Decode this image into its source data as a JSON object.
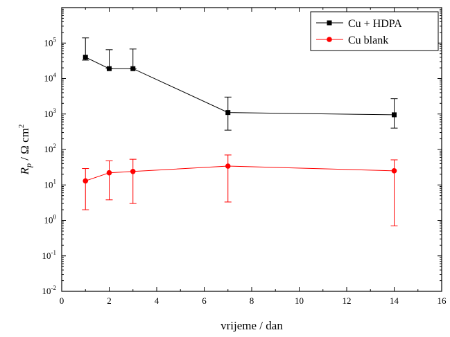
{
  "chart_data": {
    "type": "line",
    "xlabel": "vrijeme / dan",
    "ylabel": {
      "symbol": "R",
      "subscript": "p",
      "unit": " / Ω cm",
      "unit_exp": "2"
    },
    "xlim": [
      0,
      16
    ],
    "ylim": [
      0.01,
      1000000
    ],
    "yscale": "log",
    "xticks": [
      0,
      2,
      4,
      6,
      8,
      10,
      12,
      14,
      16
    ],
    "yticks": [
      {
        "value": 0.01,
        "base": "10",
        "exp": "-2"
      },
      {
        "value": 0.1,
        "base": "10",
        "exp": "-1"
      },
      {
        "value": 1,
        "base": "10",
        "exp": "0"
      },
      {
        "value": 10,
        "base": "10",
        "exp": "1"
      },
      {
        "value": 100,
        "base": "10",
        "exp": "2"
      },
      {
        "value": 1000,
        "base": "10",
        "exp": "3"
      },
      {
        "value": 10000,
        "base": "10",
        "exp": "4"
      },
      {
        "value": 100000,
        "base": "10",
        "exp": "5"
      }
    ],
    "grid": false,
    "legend_position": "top-right",
    "series": [
      {
        "name": "Cu + HDPA",
        "color": "#000000",
        "marker": "square",
        "points": [
          {
            "x": 1,
            "y": 40000,
            "err_low": 33000,
            "err_high": 140000
          },
          {
            "x": 2,
            "y": 19000,
            "err_low": 19000,
            "err_high": 65000
          },
          {
            "x": 3,
            "y": 19000,
            "err_low": 19000,
            "err_high": 68000
          },
          {
            "x": 7,
            "y": 1100,
            "err_low": 350,
            "err_high": 3000
          },
          {
            "x": 14,
            "y": 950,
            "err_low": 400,
            "err_high": 2700
          }
        ]
      },
      {
        "name": "Cu blank",
        "color": "#ff0000",
        "marker": "circle",
        "points": [
          {
            "x": 1,
            "y": 13,
            "err_low": 2,
            "err_high": 29
          },
          {
            "x": 2,
            "y": 22,
            "err_low": 3.8,
            "err_high": 48
          },
          {
            "x": 3,
            "y": 24,
            "err_low": 3,
            "err_high": 53
          },
          {
            "x": 7,
            "y": 34,
            "err_low": 3.3,
            "err_high": 70
          },
          {
            "x": 14,
            "y": 25,
            "err_low": 0.7,
            "err_high": 51
          }
        ]
      }
    ]
  }
}
